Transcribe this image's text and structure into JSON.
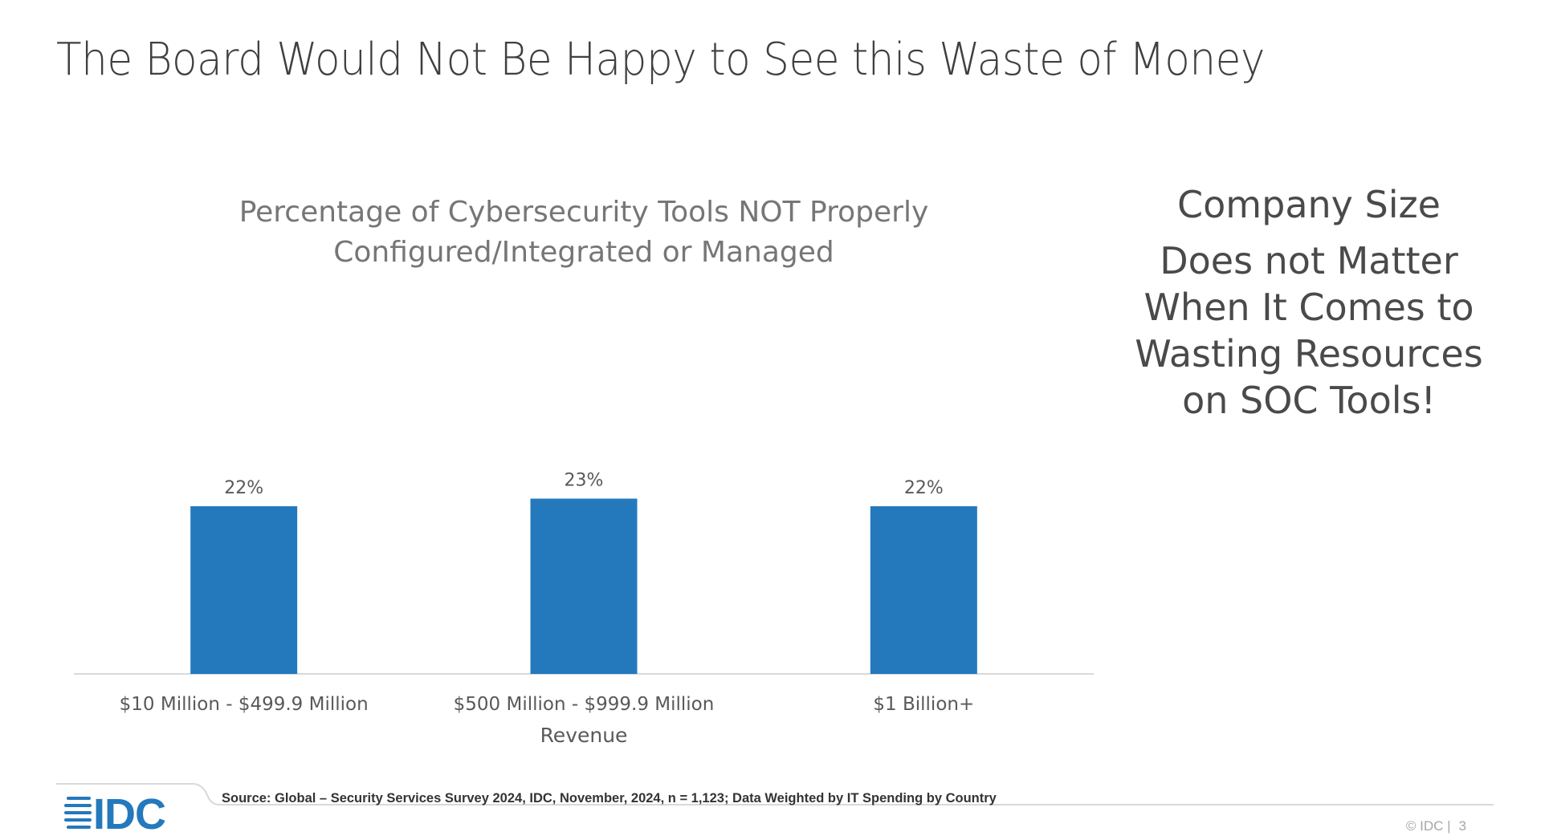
{
  "slide": {
    "title": "The Board Would Not Be Happy to See this Waste of Money"
  },
  "chart_data": {
    "type": "bar",
    "title": "Percentage of Cybersecurity Tools NOT Properly Configured/Integrated or Managed",
    "title_lines": [
      "Percentage of Cybersecurity Tools NOT Properly",
      "Configured/Integrated or Managed"
    ],
    "categories": [
      "$10 Million - $499.9 Million",
      "$500 Million - $999.9 Million",
      "$1 Billion+"
    ],
    "values": [
      22,
      23,
      22
    ],
    "data_labels": [
      "22%",
      "23%",
      "22%"
    ],
    "xlabel": "Revenue",
    "ylabel": "",
    "ylim": [
      0,
      30
    ],
    "grid": false,
    "legend": "none",
    "bar_color": "#2479BD"
  },
  "callout": {
    "line1": "Company Size",
    "line2": "Does not Matter",
    "line3": "When It Comes to",
    "line4": "Wasting Resources",
    "line5": "on SOC Tools!"
  },
  "footer": {
    "logo_text": "IDC",
    "logo_icon": "idc-logo-icon",
    "source": "Source: Global – Security Services Survey 2024, IDC, November, 2024, n = 1,123; Data Weighted by IT Spending by Country",
    "copyright": "© IDC |",
    "page_number": "3",
    "brand_color": "#2479BD"
  }
}
